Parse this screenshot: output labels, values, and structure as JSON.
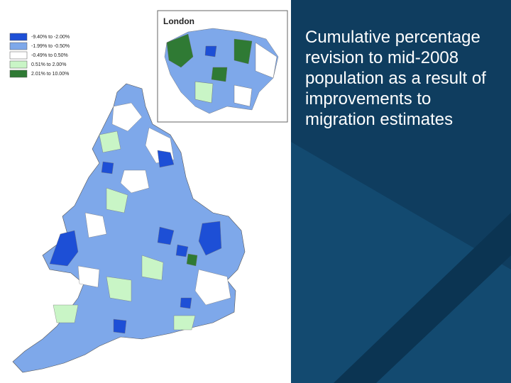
{
  "legend": {
    "items": [
      {
        "label": "-9.40% to -2.00%",
        "color": "#1d4fd6"
      },
      {
        "label": "-1.99% to -0.50%",
        "color": "#7ea8ea"
      },
      {
        "label": "-0.49% to 0.50%",
        "color": "#ffffff"
      },
      {
        "label": "0.51% to 2.00%",
        "color": "#c9f5c6"
      },
      {
        "label": "2.01% to 10.00%",
        "color": "#2f7a34"
      }
    ]
  },
  "inset": {
    "title": "London"
  },
  "caption": "Cumulative percentage revision to mid-2008 population as a result of improvements to migration estimates"
}
